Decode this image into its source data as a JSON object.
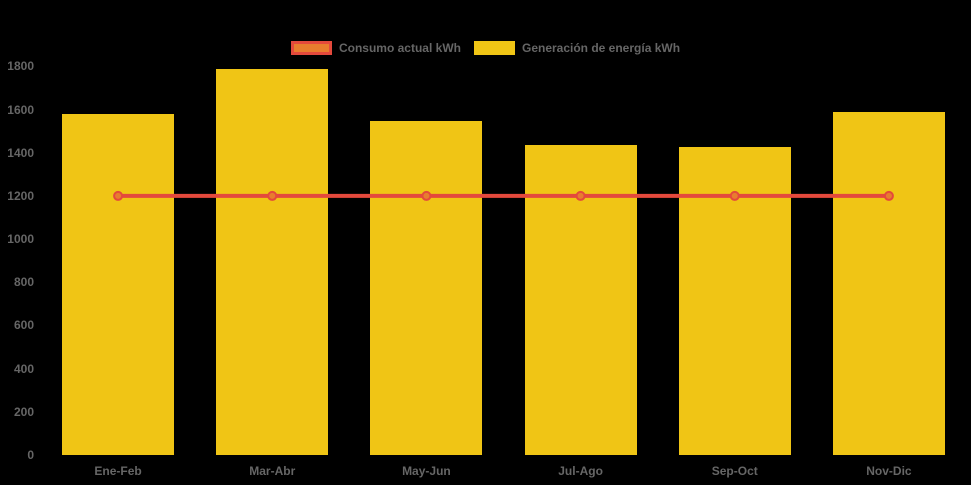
{
  "colors": {
    "background": "#000000",
    "bar_fill": "#F0C515",
    "line_stroke": "#E4493C",
    "marker_fill": "#E87D2E",
    "text": "#666666"
  },
  "legend": {
    "items": [
      {
        "label": "Consumo actual kWh",
        "swatch_fill": "#E87D2E",
        "swatch_border": "#E4493C"
      },
      {
        "label": "Generación de energía kWh",
        "swatch_fill": "#F0C515",
        "swatch_border": "#F0C515"
      }
    ]
  },
  "chart_data": {
    "type": "bar",
    "title": "",
    "xlabel": "",
    "ylabel": "",
    "categories": [
      "Ene-Feb",
      "Mar-Abr",
      "May-Jun",
      "Jul-Ago",
      "Sep-Oct",
      "Nov-Dic"
    ],
    "series": [
      {
        "name": "Consumo actual kWh",
        "type": "line",
        "values": [
          1200,
          1200,
          1200,
          1200,
          1200,
          1200
        ],
        "color": "#E4493C",
        "marker_color": "#E87D2E"
      },
      {
        "name": "Generación de energía kWh",
        "type": "bar",
        "values": [
          1580,
          1790,
          1545,
          1435,
          1425,
          1590
        ],
        "color": "#F0C515"
      }
    ],
    "ylim": [
      0,
      1800
    ],
    "y_ticks": [
      0,
      200,
      400,
      600,
      800,
      1000,
      1200,
      1400,
      1600,
      1800
    ],
    "grid": false,
    "legend_position": "top"
  }
}
